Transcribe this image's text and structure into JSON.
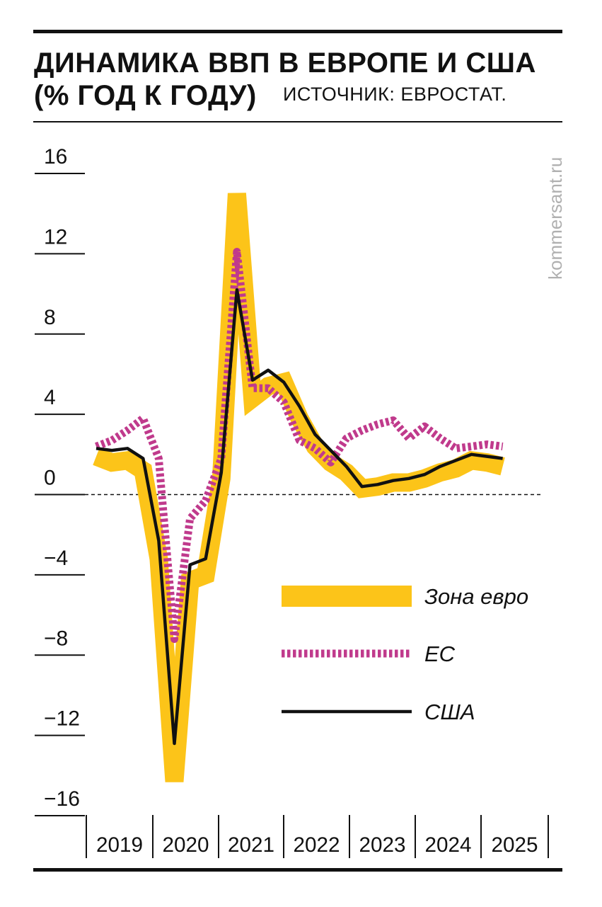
{
  "header": {
    "title_line1": "ДИНАМИКА ВВП В ЕВРОПЕ И США",
    "title_line2": "(% ГОД К ГОДУ)",
    "source": "ИСТОЧНИК: ЕВРОСТАТ."
  },
  "watermark": "kommersant.ru",
  "colors": {
    "eurozone": "#fcc419",
    "eu": "#c03a8c",
    "usa": "#111111",
    "axis": "#111111"
  },
  "chart_data": {
    "type": "line",
    "title": "ДИНАМИКА ВВП В ЕВРОПЕ И США (% ГОД К ГОДУ)",
    "xlabel": "",
    "ylabel": "",
    "ylim": [
      -16,
      16
    ],
    "yticks": [
      16,
      12,
      8,
      4,
      0,
      -4,
      -8,
      -12,
      -16
    ],
    "ytick_labels": [
      "16",
      "12",
      "8",
      "4",
      "0",
      "−4",
      "−8",
      "−12",
      "−16"
    ],
    "years": [
      "2019",
      "2020",
      "2021",
      "2022",
      "2023",
      "2024",
      "2025"
    ],
    "quarters_per_year": 4,
    "zero_line": "dashed",
    "series": [
      {
        "name": "Зона евро",
        "style": "thick-band",
        "t": [
          0,
          1,
          2,
          3,
          4,
          5,
          6,
          7,
          8,
          9,
          10,
          11,
          12,
          13,
          14,
          15,
          16,
          17,
          18,
          19,
          20,
          21,
          22,
          23,
          24,
          25,
          26
        ],
        "values": [
          1.9,
          1.6,
          1.7,
          1.2,
          -3.2,
          -14.3,
          -4.3,
          -4.0,
          0.8,
          15.0,
          4.8,
          5.4,
          5.6,
          3.8,
          2.4,
          1.6,
          1.1,
          0.3,
          0.4,
          0.6,
          0.6,
          0.8,
          1.1,
          1.3,
          1.7,
          1.6,
          1.4
        ]
      },
      {
        "name": "ЕС",
        "style": "dotted",
        "t": [
          0,
          1,
          2,
          3,
          4,
          5,
          6,
          7,
          8,
          9,
          10,
          11,
          12,
          13,
          14,
          15,
          16,
          17,
          18,
          19,
          20,
          21,
          22,
          23,
          24,
          25,
          26
        ],
        "values": [
          2.4,
          2.7,
          3.2,
          3.8,
          1.8,
          -7.2,
          -1.2,
          -0.3,
          1.8,
          12.1,
          5.3,
          5.3,
          4.6,
          2.7,
          2.3,
          1.6,
          2.8,
          3.2,
          3.5,
          3.7,
          2.8,
          3.4,
          2.8,
          2.3,
          2.4,
          2.5,
          2.4
        ]
      },
      {
        "name": "США",
        "style": "solid",
        "t": [
          0,
          1,
          2,
          3,
          4,
          5,
          6,
          7,
          8,
          9,
          10,
          11,
          12,
          13,
          14,
          15,
          16,
          17,
          18,
          19,
          20,
          21,
          22,
          23,
          24,
          25,
          26
        ],
        "values": [
          2.3,
          2.2,
          2.3,
          1.8,
          -2.3,
          -12.4,
          -3.5,
          -3.2,
          1.1,
          10.2,
          5.7,
          6.2,
          5.6,
          4.4,
          3.0,
          2.2,
          1.4,
          0.4,
          0.5,
          0.7,
          0.8,
          1.0,
          1.4,
          1.7,
          2.0,
          1.9,
          1.8
        ]
      }
    ],
    "legend": {
      "position": "bottom-right",
      "entries": [
        "Зона евро",
        "ЕС",
        "США"
      ]
    }
  }
}
